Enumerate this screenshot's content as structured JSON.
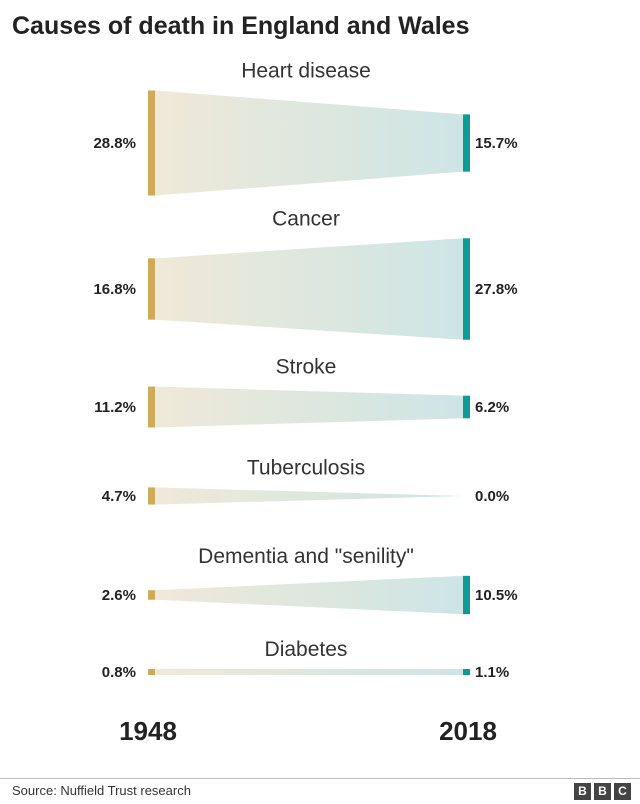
{
  "title": "Causes of death in England and Wales",
  "source": "Source: Nuffield Trust research",
  "logo": {
    "letters": [
      "B",
      "B",
      "C"
    ]
  },
  "colors": {
    "left": "#cfaa59",
    "right": "#0e9b95",
    "fill_left": "#efe9d8",
    "fill_right": "#cde5e5"
  },
  "chart_data": {
    "type": "slope",
    "title": "Causes of death in England and Wales",
    "start_label": "1948",
    "end_label": "2018",
    "unit": "%",
    "rows": [
      {
        "category": "Heart disease",
        "start": 28.8,
        "end": 15.7,
        "start_label": "28.8%",
        "end_label": "15.7%"
      },
      {
        "category": "Cancer",
        "start": 16.8,
        "end": 27.8,
        "start_label": "16.8%",
        "end_label": "27.8%"
      },
      {
        "category": "Stroke",
        "start": 11.2,
        "end": 6.2,
        "start_label": "11.2%",
        "end_label": "6.2%"
      },
      {
        "category": "Tuberculosis",
        "start": 4.7,
        "end": 0.0,
        "start_label": "4.7%",
        "end_label": "0.0%"
      },
      {
        "category": "Dementia and \"senility\"",
        "start": 2.6,
        "end": 10.5,
        "start_label": "2.6%",
        "end_label": "10.5%"
      },
      {
        "category": "Diabetes",
        "start": 0.8,
        "end": 1.1,
        "start_label": "0.8%",
        "end_label": "1.1%"
      }
    ]
  }
}
